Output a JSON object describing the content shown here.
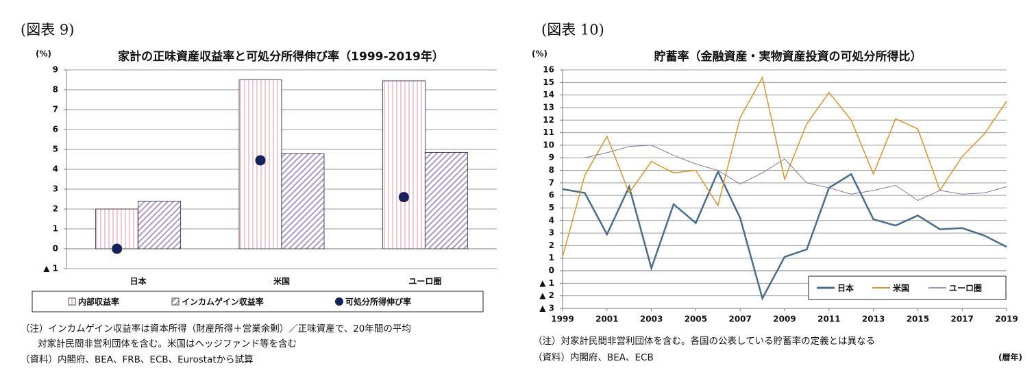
{
  "chart_data": [
    {
      "type": "bar",
      "figure_label": "(図表 9)",
      "title": "家計の正味資産収益率と可処分所得伸び率（1999-2019年）",
      "ylabel": "(%)",
      "categories": [
        "日本",
        "米国",
        "ユーロ圏"
      ],
      "series": [
        {
          "name": "内部収益率",
          "color": "#e6a3b5",
          "values": [
            2.0,
            8.5,
            8.45
          ]
        },
        {
          "name": "インカムゲイン収益率",
          "color": "#a999cc",
          "values": [
            2.4,
            4.8,
            4.85
          ]
        },
        {
          "name": "可処分所得伸び率",
          "color": "#14215a",
          "type": "scatter",
          "values": [
            0.0,
            4.45,
            2.6
          ]
        }
      ],
      "ylim": [
        -1,
        9
      ],
      "yticks": [
        {
          "value": -1,
          "label": "▲ 1"
        },
        0,
        1,
        2,
        3,
        4,
        5,
        6,
        7,
        8,
        9
      ],
      "grid": true,
      "legend": "bottom",
      "notes": [
        "（注）インカムゲイン収益率は資本所得（財産所得＋営業余剰）／正味資産で、20年間の平均",
        "対家計民間非営利団体を含む。米国はヘッジファンド等を含む",
        "（資料）内閣府、BEA、FRB、ECB、Eurostatから試算"
      ]
    },
    {
      "type": "line",
      "figure_label": "(図表 10)",
      "title": "貯蓄率（金融資産・実物資産投資の可処分所得比）",
      "ylabel": "(%)",
      "xlabel": "(暦年)",
      "x": [
        1999,
        2000,
        2001,
        2002,
        2003,
        2004,
        2005,
        2006,
        2007,
        2008,
        2009,
        2010,
        2011,
        2012,
        2013,
        2014,
        2015,
        2016,
        2017,
        2018,
        2019
      ],
      "series": [
        {
          "name": "日本",
          "color": "#4a6d8c",
          "width": 2.5,
          "values": [
            6.5,
            6.2,
            2.9,
            6.7,
            0.2,
            5.3,
            3.8,
            7.9,
            4.2,
            -2.2,
            1.1,
            1.7,
            6.6,
            7.7,
            4.1,
            3.6,
            4.4,
            3.3,
            3.4,
            2.8,
            1.9
          ]
        },
        {
          "name": "米国",
          "color": "#d9952e",
          "width": 1.5,
          "values": [
            1.1,
            7.6,
            10.7,
            6.2,
            8.7,
            7.8,
            8.0,
            5.2,
            12.2,
            15.4,
            7.3,
            11.7,
            14.2,
            12.0,
            7.7,
            12.1,
            11.3,
            6.4,
            9.1,
            10.9,
            13.5
          ]
        },
        {
          "name": "ユーロ圏",
          "color": "#7a78a8",
          "width": 1,
          "values": [
            null,
            9.0,
            9.4,
            9.9,
            10.0,
            9.2,
            8.5,
            8.0,
            6.9,
            7.8,
            8.9,
            7.0,
            6.6,
            6.1,
            6.4,
            6.8,
            5.6,
            6.4,
            6.1,
            6.2,
            6.7
          ]
        }
      ],
      "xlim": [
        1999,
        2019
      ],
      "xticks": [
        1999,
        2001,
        2003,
        2005,
        2007,
        2009,
        2011,
        2013,
        2015,
        2017,
        2019
      ],
      "ylim": [
        -3,
        16
      ],
      "yticks": [
        {
          "value": -3,
          "label": "▲ 3"
        },
        {
          "value": -2,
          "label": "▲ 2"
        },
        {
          "value": -1,
          "label": "▲ 1"
        },
        0,
        1,
        2,
        3,
        4,
        5,
        6,
        7,
        8,
        9,
        10,
        11,
        12,
        13,
        14,
        15,
        16
      ],
      "grid": true,
      "legend": "lower right",
      "notes": [
        "（注）対家計民間非営利団体を含む。各国の公表している貯蓄率の定義とは異なる",
        "（資料）内閣府、BEA、ECB"
      ]
    }
  ]
}
